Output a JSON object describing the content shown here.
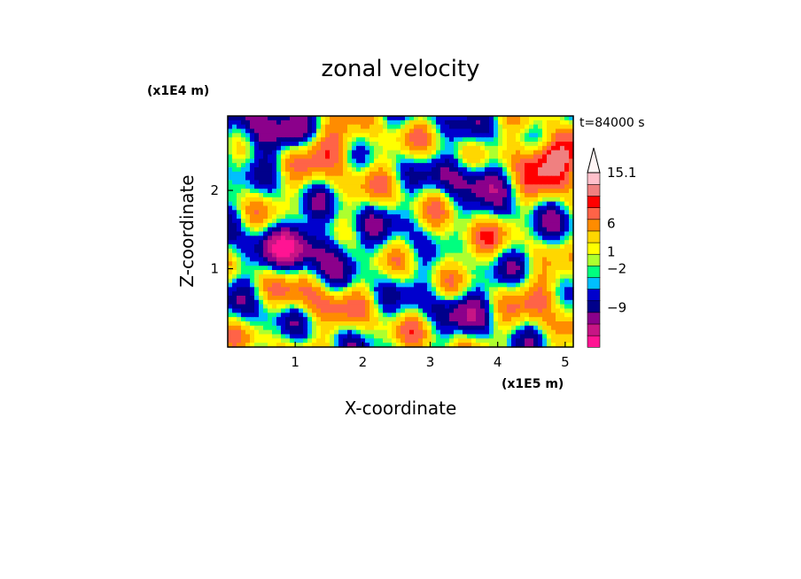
{
  "chart_data": {
    "type": "heatmap",
    "title": "zonal velocity",
    "xlabel": "X-coordinate",
    "ylabel": "Z-coordinate",
    "x_scale_label": "(x1E5 m)",
    "y_scale_label": "(x1E4 m)",
    "time_label": "t=84000 s",
    "xlim": [
      0,
      5.12
    ],
    "ylim": [
      0,
      2.95
    ],
    "x_ticks": [
      1,
      2,
      3,
      4,
      5
    ],
    "x_tick_labels": [
      "1",
      "2",
      "3",
      "4",
      "5"
    ],
    "y_ticks": [
      1,
      2
    ],
    "y_tick_labels": [
      "1",
      "2"
    ],
    "colorbar": {
      "colors": [
        "#ff1493",
        "#c71585",
        "#8b008b",
        "#00008b",
        "#0000cd",
        "#00bfff",
        "#00ff7f",
        "#adff2f",
        "#ffff00",
        "#ffd700",
        "#ff8c00",
        "#ff6347",
        "#ff0000",
        "#f08080",
        "#ffc0cb"
      ],
      "cap_color": "#fff5f5",
      "labels": [
        "15.1",
        "6",
        "1",
        "−2",
        "−9"
      ],
      "label_values": [
        15.1,
        6,
        1,
        -2,
        -9
      ],
      "range": [
        -16,
        15.1
      ]
    },
    "field_features": [
      {
        "x": 0.5,
        "z": 2.7,
        "value": -9
      },
      {
        "x": 1.6,
        "z": 2.6,
        "value": 6
      },
      {
        "x": 4.7,
        "z": 2.4,
        "value": 12
      },
      {
        "x": 3.7,
        "z": 2.2,
        "value": -9
      },
      {
        "x": 3.5,
        "z": 1.3,
        "value": 6
      },
      {
        "x": 1.1,
        "z": 1.3,
        "value": -9
      },
      {
        "x": 4.8,
        "z": 0.7,
        "value": 5
      },
      {
        "x": 1.2,
        "z": 0.6,
        "value": 4
      },
      {
        "x": 3.5,
        "z": 0.5,
        "value": -6
      },
      {
        "x": 0.5,
        "z": 0.4,
        "value": -3
      }
    ]
  }
}
